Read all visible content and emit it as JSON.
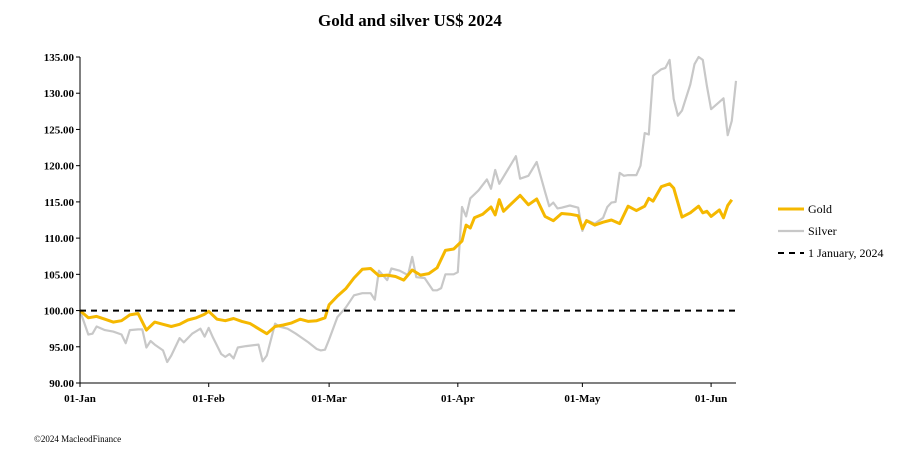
{
  "chart_data": {
    "type": "line",
    "title": "Gold and silver  US$ 2024",
    "xlabel": "",
    "ylabel": "",
    "ylim": [
      90,
      135
    ],
    "yticks": [
      "135.00",
      "130.00",
      "125.00",
      "120.00",
      "115.00",
      "110.00",
      "105.00",
      "100.00",
      "95.00",
      "90.00"
    ],
    "xticks": [
      "01-Jan",
      "01-Feb",
      "01-Mar",
      "01-Apr",
      "01-May",
      "01-Jun"
    ],
    "xtick_days": [
      0,
      31,
      60,
      91,
      121,
      152
    ],
    "x_max_day": 158,
    "legend_position": "right",
    "series": [
      {
        "name": "Gold",
        "color": "#f5b800",
        "points": [
          [
            0,
            100
          ],
          [
            2,
            99.0
          ],
          [
            4,
            99.2
          ],
          [
            6,
            98.8
          ],
          [
            8,
            98.4
          ],
          [
            10,
            98.6
          ],
          [
            12,
            99.4
          ],
          [
            14,
            99.6
          ],
          [
            16,
            97.3
          ],
          [
            18,
            98.4
          ],
          [
            20,
            98.1
          ],
          [
            22,
            97.8
          ],
          [
            24,
            98.1
          ],
          [
            26,
            98.7
          ],
          [
            28,
            99.0
          ],
          [
            30,
            99.5
          ],
          [
            31,
            99.9
          ],
          [
            33,
            98.8
          ],
          [
            35,
            98.6
          ],
          [
            37,
            98.9
          ],
          [
            39,
            98.5
          ],
          [
            41,
            98.2
          ],
          [
            43,
            97.5
          ],
          [
            45,
            96.8
          ],
          [
            47,
            97.8
          ],
          [
            49,
            98.0
          ],
          [
            51,
            98.3
          ],
          [
            53,
            98.8
          ],
          [
            55,
            98.5
          ],
          [
            57,
            98.6
          ],
          [
            59,
            99.0
          ],
          [
            60,
            100.8
          ],
          [
            62,
            102.0
          ],
          [
            64,
            103.0
          ],
          [
            66,
            104.5
          ],
          [
            68,
            105.7
          ],
          [
            70,
            105.8
          ],
          [
            72,
            104.8
          ],
          [
            74,
            104.9
          ],
          [
            76,
            104.7
          ],
          [
            78,
            104.2
          ],
          [
            80,
            105.6
          ],
          [
            82,
            104.9
          ],
          [
            84,
            105.1
          ],
          [
            86,
            105.9
          ],
          [
            88,
            108.3
          ],
          [
            90,
            108.5
          ],
          [
            92,
            109.6
          ],
          [
            93,
            111.8
          ],
          [
            94,
            111.4
          ],
          [
            95,
            112.8
          ],
          [
            97,
            113.3
          ],
          [
            99,
            114.3
          ],
          [
            100,
            113.2
          ],
          [
            101,
            115.3
          ],
          [
            102,
            113.7
          ],
          [
            104,
            114.8
          ],
          [
            106,
            115.9
          ],
          [
            108,
            114.6
          ],
          [
            110,
            115.4
          ],
          [
            112,
            113.0
          ],
          [
            114,
            112.4
          ],
          [
            116,
            113.4
          ],
          [
            118,
            113.3
          ],
          [
            120,
            113.1
          ],
          [
            121,
            111.3
          ],
          [
            122,
            112.4
          ],
          [
            124,
            111.8
          ],
          [
            126,
            112.2
          ],
          [
            128,
            112.5
          ],
          [
            130,
            112.0
          ],
          [
            132,
            114.4
          ],
          [
            134,
            113.8
          ],
          [
            136,
            114.4
          ],
          [
            137,
            115.5
          ],
          [
            138,
            115.1
          ],
          [
            140,
            117.1
          ],
          [
            142,
            117.5
          ],
          [
            143,
            116.9
          ],
          [
            145,
            112.9
          ],
          [
            147,
            113.5
          ],
          [
            149,
            114.4
          ],
          [
            150,
            113.5
          ],
          [
            151,
            113.7
          ],
          [
            152,
            113.0
          ],
          [
            154,
            113.9
          ],
          [
            155,
            112.8
          ],
          [
            156,
            114.5
          ],
          [
            157,
            115.3
          ]
        ]
      },
      {
        "name": "Silver",
        "color": "#c8c8c8",
        "points": [
          [
            0,
            100
          ],
          [
            2,
            96.7
          ],
          [
            3,
            96.8
          ],
          [
            4,
            97.8
          ],
          [
            6,
            97.3
          ],
          [
            8,
            97.1
          ],
          [
            10,
            96.7
          ],
          [
            11,
            95.5
          ],
          [
            12,
            97.3
          ],
          [
            14,
            97.4
          ],
          [
            15,
            97.4
          ],
          [
            16,
            94.9
          ],
          [
            17,
            95.8
          ],
          [
            18,
            95.3
          ],
          [
            20,
            94.5
          ],
          [
            21,
            92.9
          ],
          [
            22,
            93.8
          ],
          [
            24,
            96.2
          ],
          [
            25,
            95.6
          ],
          [
            27,
            96.8
          ],
          [
            29,
            97.5
          ],
          [
            30,
            96.4
          ],
          [
            31,
            97.6
          ],
          [
            32,
            96.3
          ],
          [
            34,
            94.0
          ],
          [
            35,
            93.6
          ],
          [
            36,
            94.0
          ],
          [
            37,
            93.4
          ],
          [
            38,
            94.9
          ],
          [
            40,
            95.1
          ],
          [
            43,
            95.3
          ],
          [
            44,
            93.0
          ],
          [
            45,
            93.8
          ],
          [
            47,
            98.2
          ],
          [
            48,
            97.8
          ],
          [
            50,
            97.5
          ],
          [
            52,
            96.8
          ],
          [
            53,
            96.4
          ],
          [
            55,
            95.6
          ],
          [
            57,
            94.7
          ],
          [
            58,
            94.5
          ],
          [
            59,
            94.6
          ],
          [
            60,
            96.0
          ],
          [
            62,
            99.1
          ],
          [
            64,
            100.4
          ],
          [
            66,
            102.1
          ],
          [
            68,
            102.4
          ],
          [
            70,
            102.4
          ],
          [
            71,
            101.5
          ],
          [
            72,
            105.5
          ],
          [
            74,
            104.2
          ],
          [
            75,
            105.8
          ],
          [
            77,
            105.5
          ],
          [
            79,
            104.9
          ],
          [
            80,
            107.4
          ],
          [
            81,
            104.6
          ],
          [
            83,
            104.5
          ],
          [
            85,
            102.8
          ],
          [
            86,
            102.8
          ],
          [
            87,
            103.1
          ],
          [
            88,
            105.0
          ],
          [
            90,
            105.0
          ],
          [
            91,
            105.3
          ],
          [
            92,
            114.3
          ],
          [
            93,
            113.0
          ],
          [
            94,
            115.5
          ],
          [
            96,
            116.6
          ],
          [
            98,
            118.1
          ],
          [
            99,
            116.8
          ],
          [
            100,
            119.4
          ],
          [
            101,
            117.5
          ],
          [
            103,
            119.4
          ],
          [
            105,
            121.3
          ],
          [
            106,
            118.2
          ],
          [
            108,
            118.6
          ],
          [
            110,
            120.5
          ],
          [
            112,
            116.4
          ],
          [
            113,
            114.4
          ],
          [
            114,
            114.9
          ],
          [
            115,
            114.1
          ],
          [
            116,
            114.2
          ],
          [
            118,
            114.5
          ],
          [
            120,
            114.2
          ],
          [
            121,
            111.0
          ],
          [
            122,
            112.5
          ],
          [
            124,
            112.0
          ],
          [
            126,
            112.8
          ],
          [
            127,
            114.3
          ],
          [
            128,
            114.9
          ],
          [
            129,
            115.0
          ],
          [
            130,
            119.0
          ],
          [
            131,
            118.6
          ],
          [
            132,
            118.7
          ],
          [
            134,
            118.7
          ],
          [
            135,
            120.0
          ],
          [
            136,
            124.5
          ],
          [
            137,
            124.3
          ],
          [
            138,
            132.4
          ],
          [
            140,
            133.3
          ],
          [
            141,
            133.5
          ],
          [
            142,
            134.6
          ],
          [
            143,
            129.2
          ],
          [
            144,
            126.9
          ],
          [
            145,
            127.6
          ],
          [
            147,
            131.2
          ],
          [
            148,
            134.0
          ],
          [
            149,
            135.0
          ],
          [
            150,
            134.6
          ],
          [
            151,
            131.0
          ],
          [
            152,
            127.8
          ],
          [
            154,
            128.8
          ],
          [
            155,
            129.3
          ],
          [
            156,
            124.2
          ],
          [
            157,
            126.2
          ],
          [
            158,
            131.7
          ]
        ]
      },
      {
        "name": "1 January, 2024",
        "color": "#000000",
        "dashed": true,
        "points": [
          [
            0,
            100
          ],
          [
            158,
            100
          ]
        ]
      }
    ],
    "credit": "©2024 MacleodFinance"
  }
}
